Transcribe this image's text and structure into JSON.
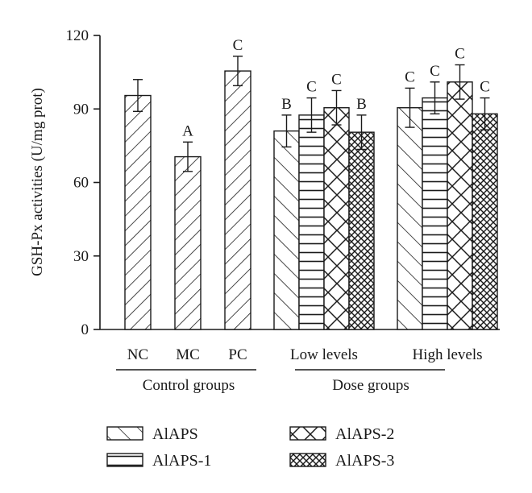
{
  "chart_data": {
    "type": "bar",
    "ylabel": "GSH-Px activities (U/mg prot)",
    "ylim": [
      0,
      120
    ],
    "yticks": [
      0,
      30,
      60,
      90,
      120
    ],
    "category_labels": [
      "NC",
      "MC",
      "PC",
      "Low levels",
      "High levels"
    ],
    "group_labels": [
      "Control groups",
      "Dose groups"
    ],
    "legend": [
      {
        "name": "AlAPS",
        "pattern": "diag-back"
      },
      {
        "name": "AlAPS-2",
        "pattern": "cross"
      },
      {
        "name": "AlAPS-1",
        "pattern": "horizontal"
      },
      {
        "name": "AlAPS-3",
        "pattern": "fine-cross"
      }
    ],
    "bars": [
      {
        "category": "NC",
        "series": "control",
        "value": 95.5,
        "error": 6.5,
        "label": ""
      },
      {
        "category": "MC",
        "series": "control",
        "value": 70.5,
        "error": 6.0,
        "label": "A"
      },
      {
        "category": "PC",
        "series": "control",
        "value": 105.5,
        "error": 6.0,
        "label": "C"
      },
      {
        "category": "Low levels",
        "series": "AlAPS",
        "value": 81.0,
        "error": 6.5,
        "label": "B"
      },
      {
        "category": "Low levels",
        "series": "AlAPS-1",
        "value": 87.5,
        "error": 7.0,
        "label": "C"
      },
      {
        "category": "Low levels",
        "series": "AlAPS-2",
        "value": 90.5,
        "error": 7.0,
        "label": "C"
      },
      {
        "category": "Low levels",
        "series": "AlAPS-3",
        "value": 80.5,
        "error": 7.0,
        "label": "B"
      },
      {
        "category": "High levels",
        "series": "AlAPS",
        "value": 90.5,
        "error": 8.0,
        "label": "C"
      },
      {
        "category": "High levels",
        "series": "AlAPS-1",
        "value": 94.5,
        "error": 6.5,
        "label": "C"
      },
      {
        "category": "High levels",
        "series": "AlAPS-2",
        "value": 101.0,
        "error": 7.0,
        "label": "C"
      },
      {
        "category": "High levels",
        "series": "AlAPS-3",
        "value": 88.0,
        "error": 6.5,
        "label": "C"
      }
    ]
  }
}
